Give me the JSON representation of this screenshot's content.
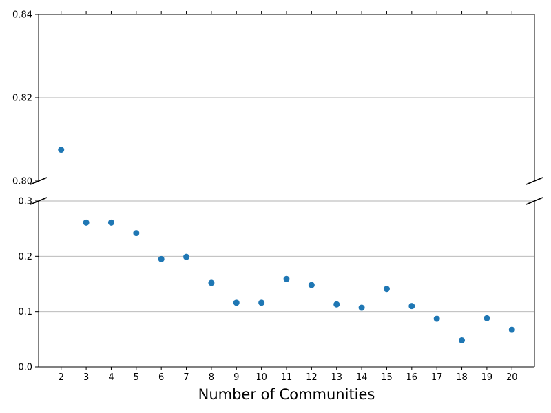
{
  "chart_data": {
    "type": "scatter",
    "title": "",
    "xlabel": "Number of Communities",
    "ylabel": "",
    "grid": "y",
    "broken_y_axis": true,
    "color": "#1f77b4",
    "x": [
      2,
      3,
      4,
      5,
      6,
      7,
      8,
      9,
      10,
      11,
      12,
      13,
      14,
      15,
      16,
      17,
      18,
      19,
      20
    ],
    "y": [
      0.8075,
      0.261,
      0.261,
      0.242,
      0.195,
      0.199,
      0.152,
      0.116,
      0.116,
      0.159,
      0.148,
      0.113,
      0.107,
      0.141,
      0.11,
      0.087,
      0.048,
      0.088,
      0.067
    ],
    "xlim": [
      1.1,
      20.9
    ],
    "xticks": [
      "2",
      "3",
      "4",
      "5",
      "6",
      "7",
      "8",
      "9",
      "10",
      "11",
      "12",
      "13",
      "14",
      "15",
      "16",
      "17",
      "18",
      "19",
      "20"
    ],
    "upper_panel": {
      "ylim": [
        0.8,
        0.84
      ],
      "yticks": [
        "0.80",
        "0.82",
        "0.84"
      ]
    },
    "lower_panel": {
      "ylim": [
        0.0,
        0.3
      ],
      "yticks": [
        "0.0",
        "0.1",
        "0.2",
        "0.3"
      ]
    }
  }
}
